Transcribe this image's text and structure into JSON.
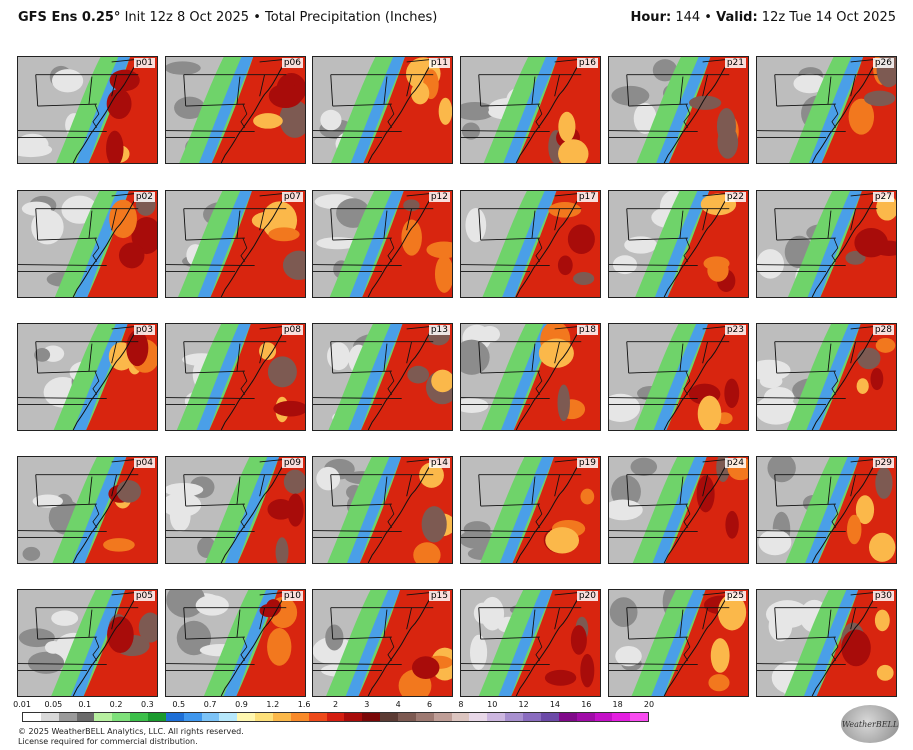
{
  "header": {
    "model": "GFS Ens 0.25°",
    "init": "Init 12z 8 Oct 2025",
    "bullet": "•",
    "field": "Total Precipitation (Inches)",
    "hour_label": "Hour:",
    "hour_value": "144",
    "valid_label": "Valid:",
    "valid_value": "12z Tue 14 Oct 2025"
  },
  "panels": [
    [
      "p01",
      "p06",
      "p11",
      "p16",
      "p21",
      "p26"
    ],
    [
      "p02",
      "p07",
      "p12",
      "p17",
      "p22",
      "p27"
    ],
    [
      "p03",
      "p08",
      "p13",
      "p18",
      "p23",
      "p28"
    ],
    [
      "p04",
      "p09",
      "p14",
      "p19",
      "p24",
      "p29"
    ],
    [
      "p05",
      "p10",
      "p15",
      "p20",
      "p25",
      "p30"
    ]
  ],
  "colorbar": {
    "ticks": [
      "0.01",
      "0.05",
      "0.1",
      "0.2",
      "0.3",
      "0.5",
      "0.7",
      "0.9",
      "1.2",
      "1.6",
      "2",
      "3",
      "4",
      "6",
      "8",
      "10",
      "12",
      "14",
      "16",
      "18",
      "20"
    ],
    "colors": [
      "#ffffff",
      "#d9d9d9",
      "#9a9a9a",
      "#6b6b6b",
      "#b7f0a0",
      "#7ee07a",
      "#3cbf4a",
      "#1a9a2e",
      "#1e6fd6",
      "#3f97ee",
      "#7cc3f7",
      "#b6e7fb",
      "#fff7b0",
      "#fde07a",
      "#fbb84a",
      "#f88a2a",
      "#ee4a1a",
      "#d41e10",
      "#a80c0a",
      "#7a0808",
      "#5c3b34",
      "#7d5a52",
      "#9e7a72",
      "#bf9e97",
      "#dcc5c0",
      "#e8d8e8",
      "#cdb7e0",
      "#a890cf",
      "#8a6cbf",
      "#6c4aa8",
      "#800a8a",
      "#a00ca8",
      "#c410c8",
      "#e31ee0",
      "#f84cf0"
    ]
  },
  "footer": {
    "copyright": "© 2025 WeatherBELL Analytics, LLC. All rights reserved.",
    "license": "License required for commercial distribution."
  },
  "logo": {
    "text": "WeatherBELL"
  }
}
